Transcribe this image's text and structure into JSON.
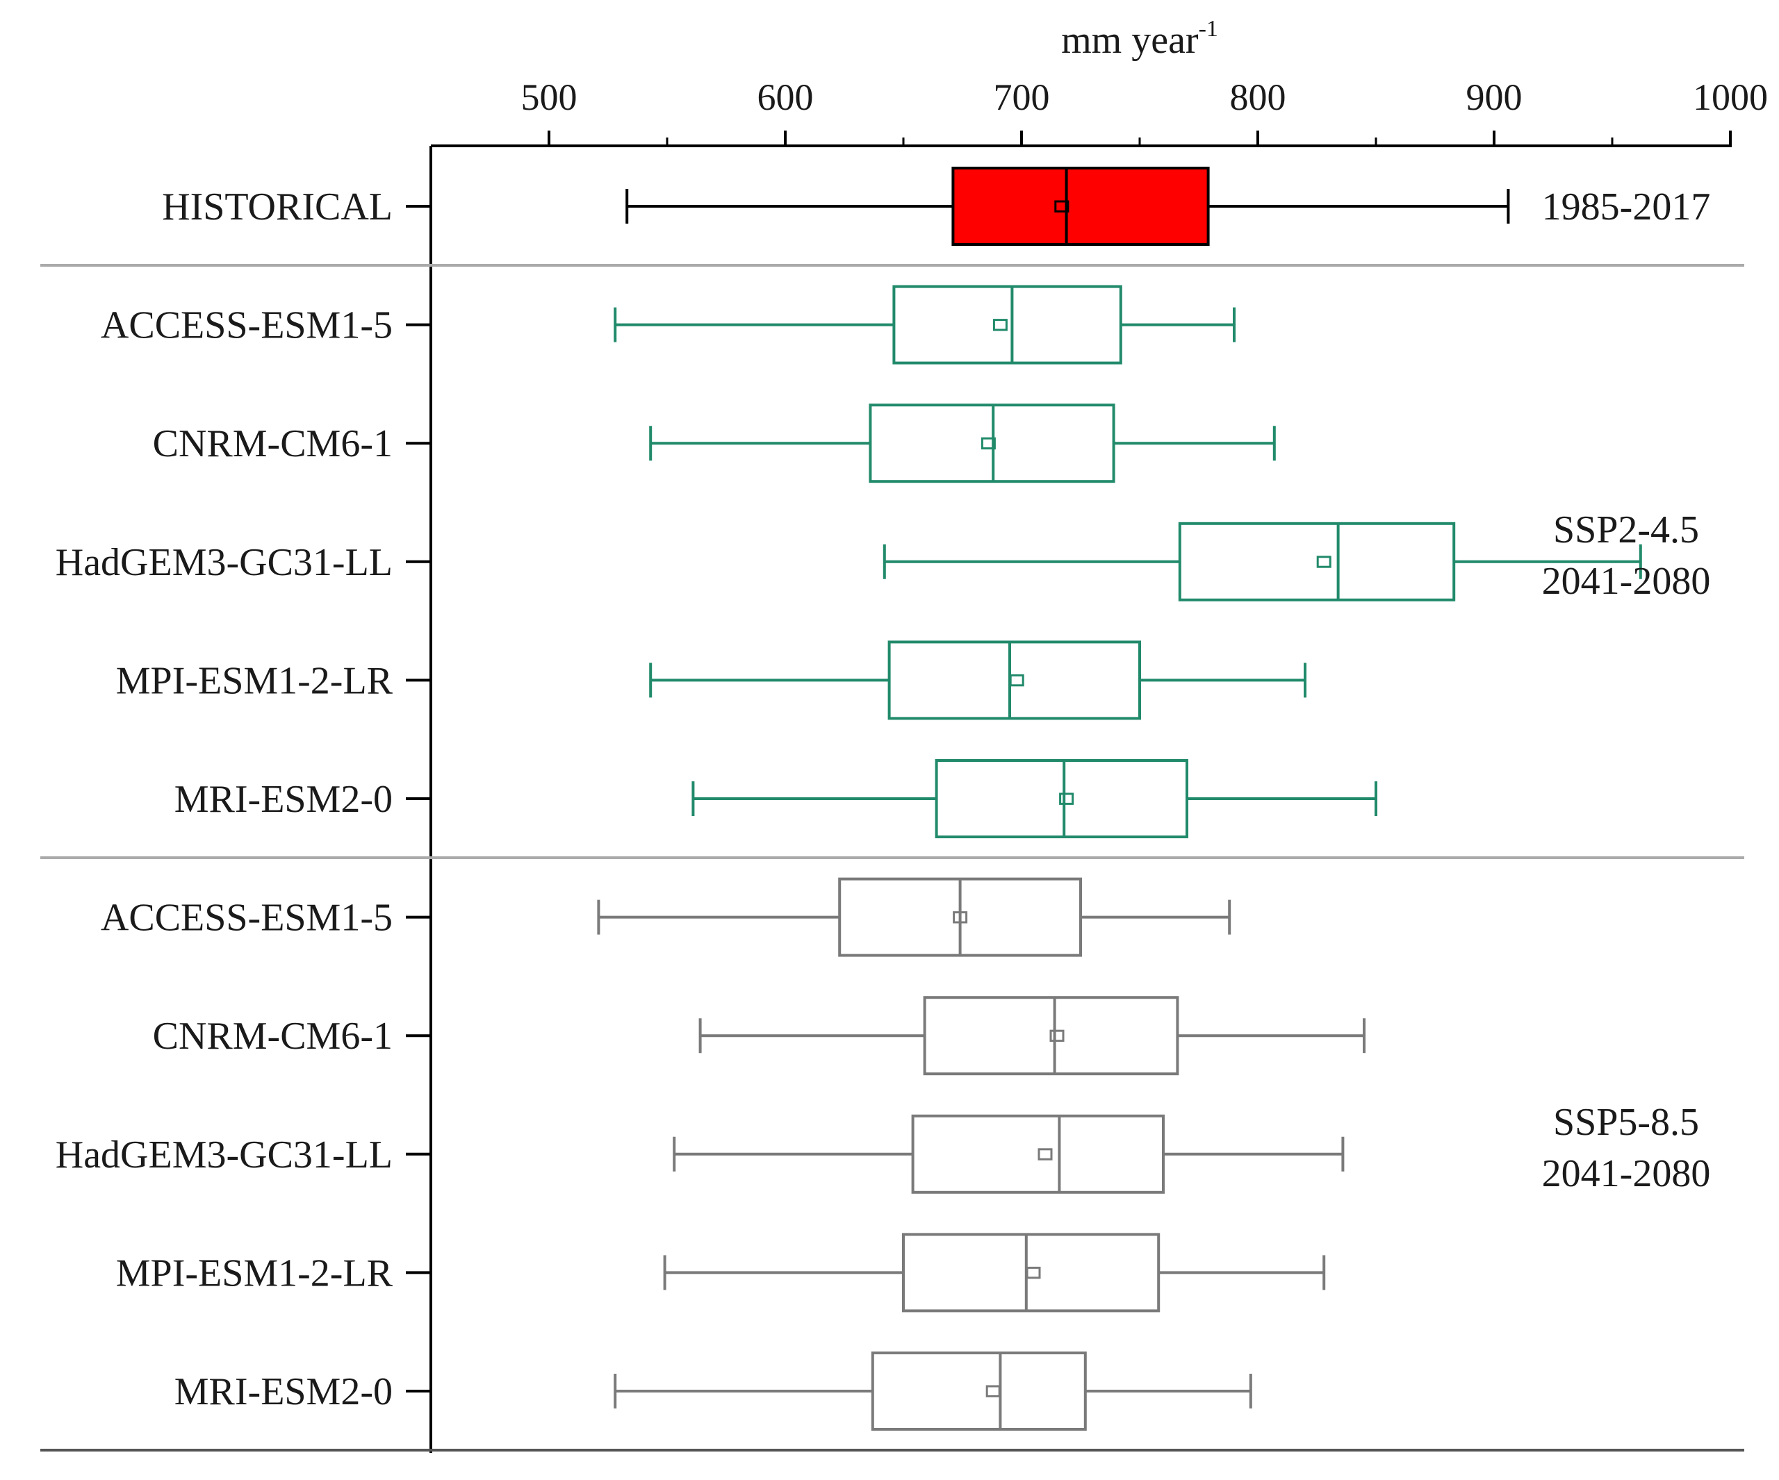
{
  "chart_data": {
    "type": "boxplot",
    "orientation": "horizontal",
    "axis": {
      "label": "mm year",
      "label_superscript": "-1",
      "position": "top",
      "range": [
        450,
        1000
      ],
      "major_ticks": [
        500,
        600,
        700,
        800,
        900,
        1000
      ],
      "tick_labels": [
        "500",
        "600",
        "700",
        "800",
        "900",
        "1000"
      ],
      "minor_ticks": [
        550,
        650,
        750,
        850,
        950
      ]
    },
    "groups": [
      {
        "id": "historical",
        "labels": [
          "1985-2017"
        ],
        "color": "#000000",
        "fill": "#ff0000",
        "boxes": [
          {
            "name": "HISTORICAL",
            "min": 533,
            "q1": 671,
            "median": 719,
            "mean": 717,
            "q3": 779,
            "max": 906
          }
        ]
      },
      {
        "id": "ssp245",
        "labels": [
          "SSP2-4.5",
          "2041-2080"
        ],
        "color": "#218a6a",
        "fill": "none",
        "boxes": [
          {
            "name": "ACCESS-ESM1-5",
            "min": 528,
            "q1": 646,
            "median": 696,
            "mean": 691,
            "q3": 742,
            "max": 790
          },
          {
            "name": "CNRM-CM6-1",
            "min": 543,
            "q1": 636,
            "median": 688,
            "mean": 686,
            "q3": 739,
            "max": 807
          },
          {
            "name": "HadGEM3-GC31-LL",
            "min": 642,
            "q1": 767,
            "median": 834,
            "mean": 828,
            "q3": 883,
            "max": 962
          },
          {
            "name": "MPI-ESM1-2-LR",
            "min": 543,
            "q1": 644,
            "median": 695,
            "mean": 698,
            "q3": 750,
            "max": 820
          },
          {
            "name": "MRI-ESM2-0",
            "min": 561,
            "q1": 664,
            "median": 718,
            "mean": 719,
            "q3": 770,
            "max": 850
          }
        ]
      },
      {
        "id": "ssp585",
        "labels": [
          "SSP5-8.5",
          "2041-2080"
        ],
        "color": "#7a7a7a",
        "fill": "none",
        "boxes": [
          {
            "name": "ACCESS-ESM1-5",
            "min": 521,
            "q1": 623,
            "median": 674,
            "mean": 674,
            "q3": 725,
            "max": 788
          },
          {
            "name": "CNRM-CM6-1",
            "min": 564,
            "q1": 659,
            "median": 714,
            "mean": 715,
            "q3": 766,
            "max": 845
          },
          {
            "name": "HadGEM3-GC31-LL",
            "min": 553,
            "q1": 654,
            "median": 716,
            "mean": 710,
            "q3": 760,
            "max": 836
          },
          {
            "name": "MPI-ESM1-2-LR",
            "min": 549,
            "q1": 650,
            "median": 702,
            "mean": 705,
            "q3": 758,
            "max": 828
          },
          {
            "name": "MRI-ESM2-0",
            "min": 528,
            "q1": 637,
            "median": 691,
            "mean": 688,
            "q3": 727,
            "max": 797
          }
        ]
      }
    ]
  }
}
